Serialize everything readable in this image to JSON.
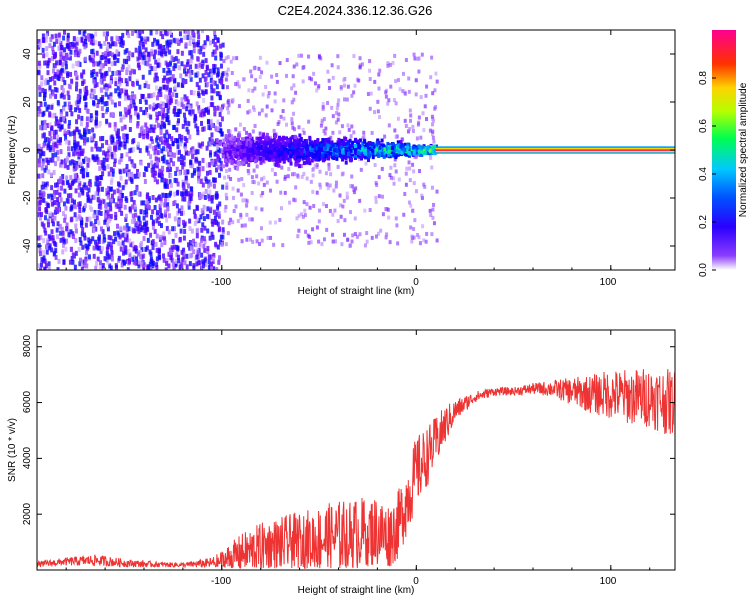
{
  "title": "C2E4.2024.336.12.36.G26",
  "chart_data": [
    {
      "type": "heatmap",
      "xlabel": "Height of straight line (km)",
      "ylabel": "Frequency (Hz)",
      "xlim": [
        -195,
        133
      ],
      "ylim": [
        -50,
        50
      ],
      "xticks": [
        -100,
        0,
        100
      ],
      "xtick_labels": [
        "-100",
        "0",
        "100"
      ],
      "yticks": [
        -40,
        -20,
        0,
        20,
        40
      ],
      "ytick_labels": [
        "-40",
        "-20",
        "0",
        "20",
        "40"
      ],
      "colorbar": {
        "label": "Normalized spectral amplitude",
        "range": [
          0,
          1
        ],
        "ticks": [
          0.0,
          0.2,
          0.4,
          0.6,
          0.8
        ],
        "tick_labels": [
          "0.0",
          "0.2",
          "0.4",
          "0.6",
          "0.8"
        ],
        "colormap": [
          "#ffffff",
          "#6a00ff",
          "#0000ff",
          "#00c8ff",
          "#00ff60",
          "#c8ff00",
          "#ffc800",
          "#ff0000",
          "#ff0090"
        ]
      },
      "features": [
        {
          "x_range": [
            -195,
            -100
          ],
          "freq_range": [
            -50,
            50
          ],
          "amplitude": 0.15
        },
        {
          "x_range": [
            -100,
            10
          ],
          "freq_center": 0,
          "freq_spread_hz": 10,
          "amplitude": 0.45
        },
        {
          "x_range": [
            10,
            133
          ],
          "freq_center": 0,
          "freq_spread_hz": 1.5,
          "amplitude": 0.95
        }
      ]
    },
    {
      "type": "line",
      "xlabel": "Height of straight line (km)",
      "ylabel": "SNR (10 * v/v)",
      "xlim": [
        -195,
        133
      ],
      "ylim": [
        0,
        8600
      ],
      "xticks": [
        -100,
        0,
        100
      ],
      "xtick_labels": [
        "-100",
        "0",
        "100"
      ],
      "yticks": [
        2000,
        4000,
        6000,
        8000
      ],
      "ytick_labels": [
        "2000",
        "4000",
        "6000",
        "8000"
      ],
      "series": [
        {
          "color": "#ee3333",
          "x": [
            -195,
            -180,
            -165,
            -150,
            -135,
            -120,
            -105,
            -100,
            -90,
            -80,
            -70,
            -60,
            -50,
            -40,
            -30,
            -20,
            -15,
            -10,
            -5,
            0,
            5,
            10,
            15,
            20,
            30,
            40,
            50,
            60,
            70,
            80,
            90,
            100,
            110,
            120,
            130
          ],
          "y": [
            200,
            300,
            350,
            250,
            200,
            180,
            250,
            300,
            600,
            800,
            900,
            1000,
            1100,
            1200,
            1300,
            1400,
            1200,
            1500,
            2500,
            3500,
            4000,
            4600,
            5200,
            5700,
            6200,
            6400,
            6400,
            6500,
            6500,
            6400,
            6300,
            6300,
            6200,
            6200,
            6000
          ],
          "noise_amplitude": [
            100,
            150,
            200,
            150,
            100,
            80,
            200,
            400,
            700,
            900,
            1000,
            1100,
            1200,
            1300,
            1300,
            1300,
            1200,
            1200,
            1300,
            1300,
            1100,
            900,
            700,
            400,
            200,
            150,
            150,
            200,
            300,
            500,
            700,
            900,
            1000,
            1100,
            1200
          ]
        }
      ]
    }
  ]
}
